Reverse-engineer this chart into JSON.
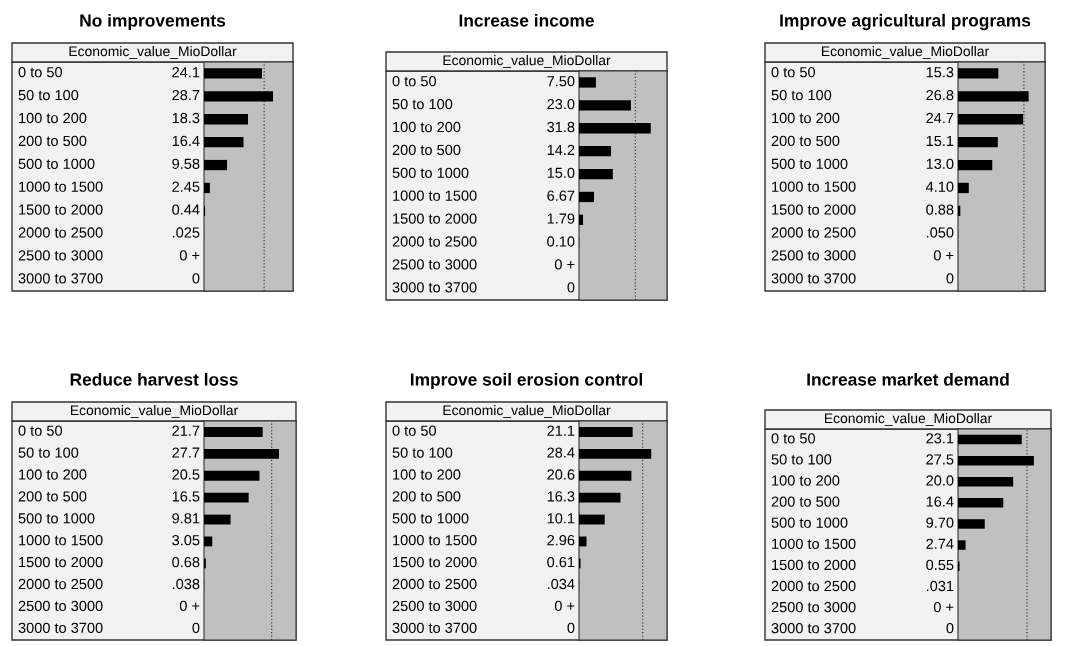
{
  "chart_data": [
    {
      "type": "bar",
      "orientation": "horizontal",
      "title": "No improvements",
      "subtitle": "Economic_value_MioDollar",
      "tick_labels": false,
      "color": "#000000",
      "xlim": [
        0,
        37
      ],
      "categories": [
        "0 to 50",
        "50 to 100",
        "100 to 200",
        "200 to 500",
        "500 to 1000",
        "1000 to 1500",
        "1500 to 2000",
        "2000 to 2500",
        "2500 to 3000",
        "3000 to 3700"
      ],
      "values": [
        24.1,
        28.7,
        18.3,
        16.4,
        9.58,
        2.45,
        0.44,
        0.025,
        0,
        0
      ],
      "value_labels": [
        "24.1",
        "28.7",
        "18.3",
        "16.4",
        "9.58",
        "2.45",
        "0.44",
        ".025",
        "0 +",
        "0"
      ],
      "ref_lines": [
        {
          "axis": "x",
          "value": 25,
          "line_style": "dotted",
          "color": "#444444"
        }
      ]
    },
    {
      "type": "bar",
      "orientation": "horizontal",
      "title": "Increase income",
      "subtitle": "Economic_value_MioDollar",
      "tick_labels": false,
      "color": "#000000",
      "xlim": [
        0,
        39
      ],
      "categories": [
        "0 to 50",
        "50 to 100",
        "100 to 200",
        "200 to 500",
        "500 to 1000",
        "1000 to 1500",
        "1500 to 2000",
        "2000 to 2500",
        "2500 to 3000",
        "3000 to 3700"
      ],
      "values": [
        7.5,
        23.0,
        31.8,
        14.2,
        15.0,
        6.67,
        1.79,
        0.1,
        0,
        0
      ],
      "value_labels": [
        "7.50",
        "23.0",
        "31.8",
        "14.2",
        "15.0",
        "6.67",
        "1.79",
        "0.10",
        "0 +",
        "0"
      ],
      "ref_lines": [
        {
          "axis": "x",
          "value": 25,
          "line_style": "dotted",
          "color": "#444444"
        }
      ]
    },
    {
      "type": "bar",
      "orientation": "horizontal",
      "title": "Improve agricultural programs",
      "subtitle": "Economic_value_MioDollar",
      "tick_labels": false,
      "color": "#000000",
      "xlim": [
        0,
        33
      ],
      "categories": [
        "0 to 50",
        "50 to 100",
        "100 to 200",
        "200 to 500",
        "500 to 1000",
        "1000 to 1500",
        "1500 to 2000",
        "2000 to 2500",
        "2500 to 3000",
        "3000 to 3700"
      ],
      "values": [
        15.3,
        26.8,
        24.7,
        15.1,
        13.0,
        4.1,
        0.88,
        0.05,
        0,
        0
      ],
      "value_labels": [
        "15.3",
        "26.8",
        "24.7",
        "15.1",
        "13.0",
        "4.10",
        "0.88",
        ".050",
        "0 +",
        "0"
      ],
      "ref_lines": [
        {
          "axis": "x",
          "value": 25,
          "line_style": "dotted",
          "color": "#444444"
        }
      ]
    },
    {
      "type": "bar",
      "orientation": "horizontal",
      "title": "Reduce harvest loss",
      "subtitle": "Economic_value_MioDollar",
      "tick_labels": false,
      "color": "#000000",
      "xlim": [
        0,
        34
      ],
      "categories": [
        "0 to 50",
        "50 to 100",
        "100 to 200",
        "200 to 500",
        "500 to 1000",
        "1000 to 1500",
        "1500 to 2000",
        "2000 to 2500",
        "2500 to 3000",
        "3000 to 3700"
      ],
      "values": [
        21.7,
        27.7,
        20.5,
        16.5,
        9.81,
        3.05,
        0.68,
        0.038,
        0,
        0
      ],
      "value_labels": [
        "21.7",
        "27.7",
        "20.5",
        "16.5",
        "9.81",
        "3.05",
        "0.68",
        ".038",
        "0 +",
        "0"
      ],
      "ref_lines": [
        {
          "axis": "x",
          "value": 25,
          "line_style": "dotted",
          "color": "#444444"
        }
      ]
    },
    {
      "type": "bar",
      "orientation": "horizontal",
      "title": "Improve soil erosion control",
      "subtitle": "Economic_value_MioDollar",
      "tick_labels": false,
      "color": "#000000",
      "xlim": [
        0,
        34.6
      ],
      "categories": [
        "0 to 50",
        "50 to 100",
        "100 to 200",
        "200 to 500",
        "500 to 1000",
        "1000 to 1500",
        "1500 to 2000",
        "2000 to 2500",
        "2500 to 3000",
        "3000 to 3700"
      ],
      "values": [
        21.1,
        28.4,
        20.6,
        16.3,
        10.1,
        2.96,
        0.61,
        0.034,
        0,
        0
      ],
      "value_labels": [
        "21.1",
        "28.4",
        "20.6",
        "16.3",
        "10.1",
        "2.96",
        "0.61",
        ".034",
        "0 +",
        "0"
      ],
      "ref_lines": [
        {
          "axis": "x",
          "value": 25,
          "line_style": "dotted",
          "color": "#444444"
        }
      ]
    },
    {
      "type": "bar",
      "orientation": "horizontal",
      "title": "Increase market demand",
      "subtitle": "Economic_value_MioDollar",
      "tick_labels": false,
      "color": "#000000",
      "xlim": [
        0,
        33.7
      ],
      "categories": [
        "0 to 50",
        "50 to 100",
        "100 to 200",
        "200 to 500",
        "500 to 1000",
        "1000 to 1500",
        "1500 to 2000",
        "2000 to 2500",
        "2500 to 3000",
        "3000 to 3700"
      ],
      "values": [
        23.1,
        27.5,
        20.0,
        16.4,
        9.7,
        2.74,
        0.55,
        0.031,
        0,
        0
      ],
      "value_labels": [
        "23.1",
        "27.5",
        "20.0",
        "16.4",
        "9.70",
        "2.74",
        "0.55",
        ".031",
        "0 +",
        "0"
      ],
      "ref_lines": [
        {
          "axis": "x",
          "value": 25,
          "line_style": "dotted",
          "color": "#444444"
        }
      ]
    }
  ]
}
